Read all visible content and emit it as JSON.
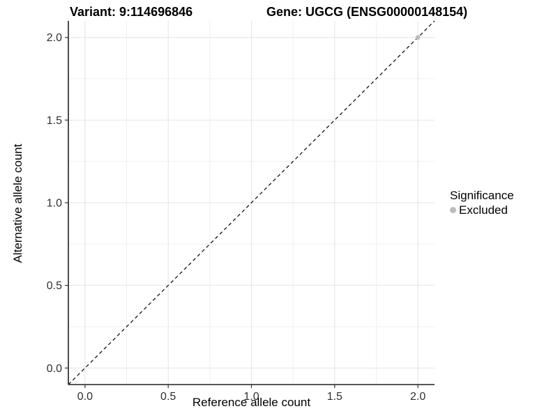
{
  "chart_data": {
    "type": "scatter",
    "title_left": "Variant: 9:114696846",
    "title_right": "Gene: UGCG (ENSG00000148154)",
    "xlabel": "Reference allele count",
    "ylabel": "Alternative allele count",
    "xlim": [
      -0.1,
      2.1
    ],
    "ylim": [
      -0.1,
      2.1
    ],
    "xticks": [
      0.0,
      0.5,
      1.0,
      1.5,
      2.0
    ],
    "xtick_labels": [
      "0.0",
      "0.5",
      "1.0",
      "1.5",
      "2.0"
    ],
    "yticks": [
      0.0,
      0.5,
      1.0,
      1.5,
      2.0
    ],
    "ytick_labels": [
      "0.0",
      "0.5",
      "1.0",
      "1.5",
      "2.0"
    ],
    "xminor": [
      0.25,
      0.75,
      1.25,
      1.75
    ],
    "yminor": [
      0.25,
      0.75,
      1.25,
      1.75
    ],
    "grid": "major+minor",
    "reference_line": {
      "kind": "identity",
      "style": "dashed",
      "from": [
        -0.1,
        -0.1
      ],
      "to": [
        2.1,
        2.1
      ],
      "color": "#000000"
    },
    "series": [
      {
        "name": "Excluded",
        "color": "#bdbdbd",
        "marker": "circle",
        "points": [
          [
            2.0,
            2.0
          ]
        ]
      }
    ],
    "legend": {
      "title": "Significance",
      "position": "right",
      "entries": [
        {
          "label": "Excluded",
          "color": "#bdbdbd",
          "marker": "circle"
        }
      ]
    },
    "style": {
      "background": "#ffffff",
      "grid_major_color": "#e4e4e4",
      "grid_minor_color": "#efefef",
      "axis_line_color": "#1f1f1f",
      "tick_color": "#333333",
      "tick_label_color": "#303030"
    }
  }
}
